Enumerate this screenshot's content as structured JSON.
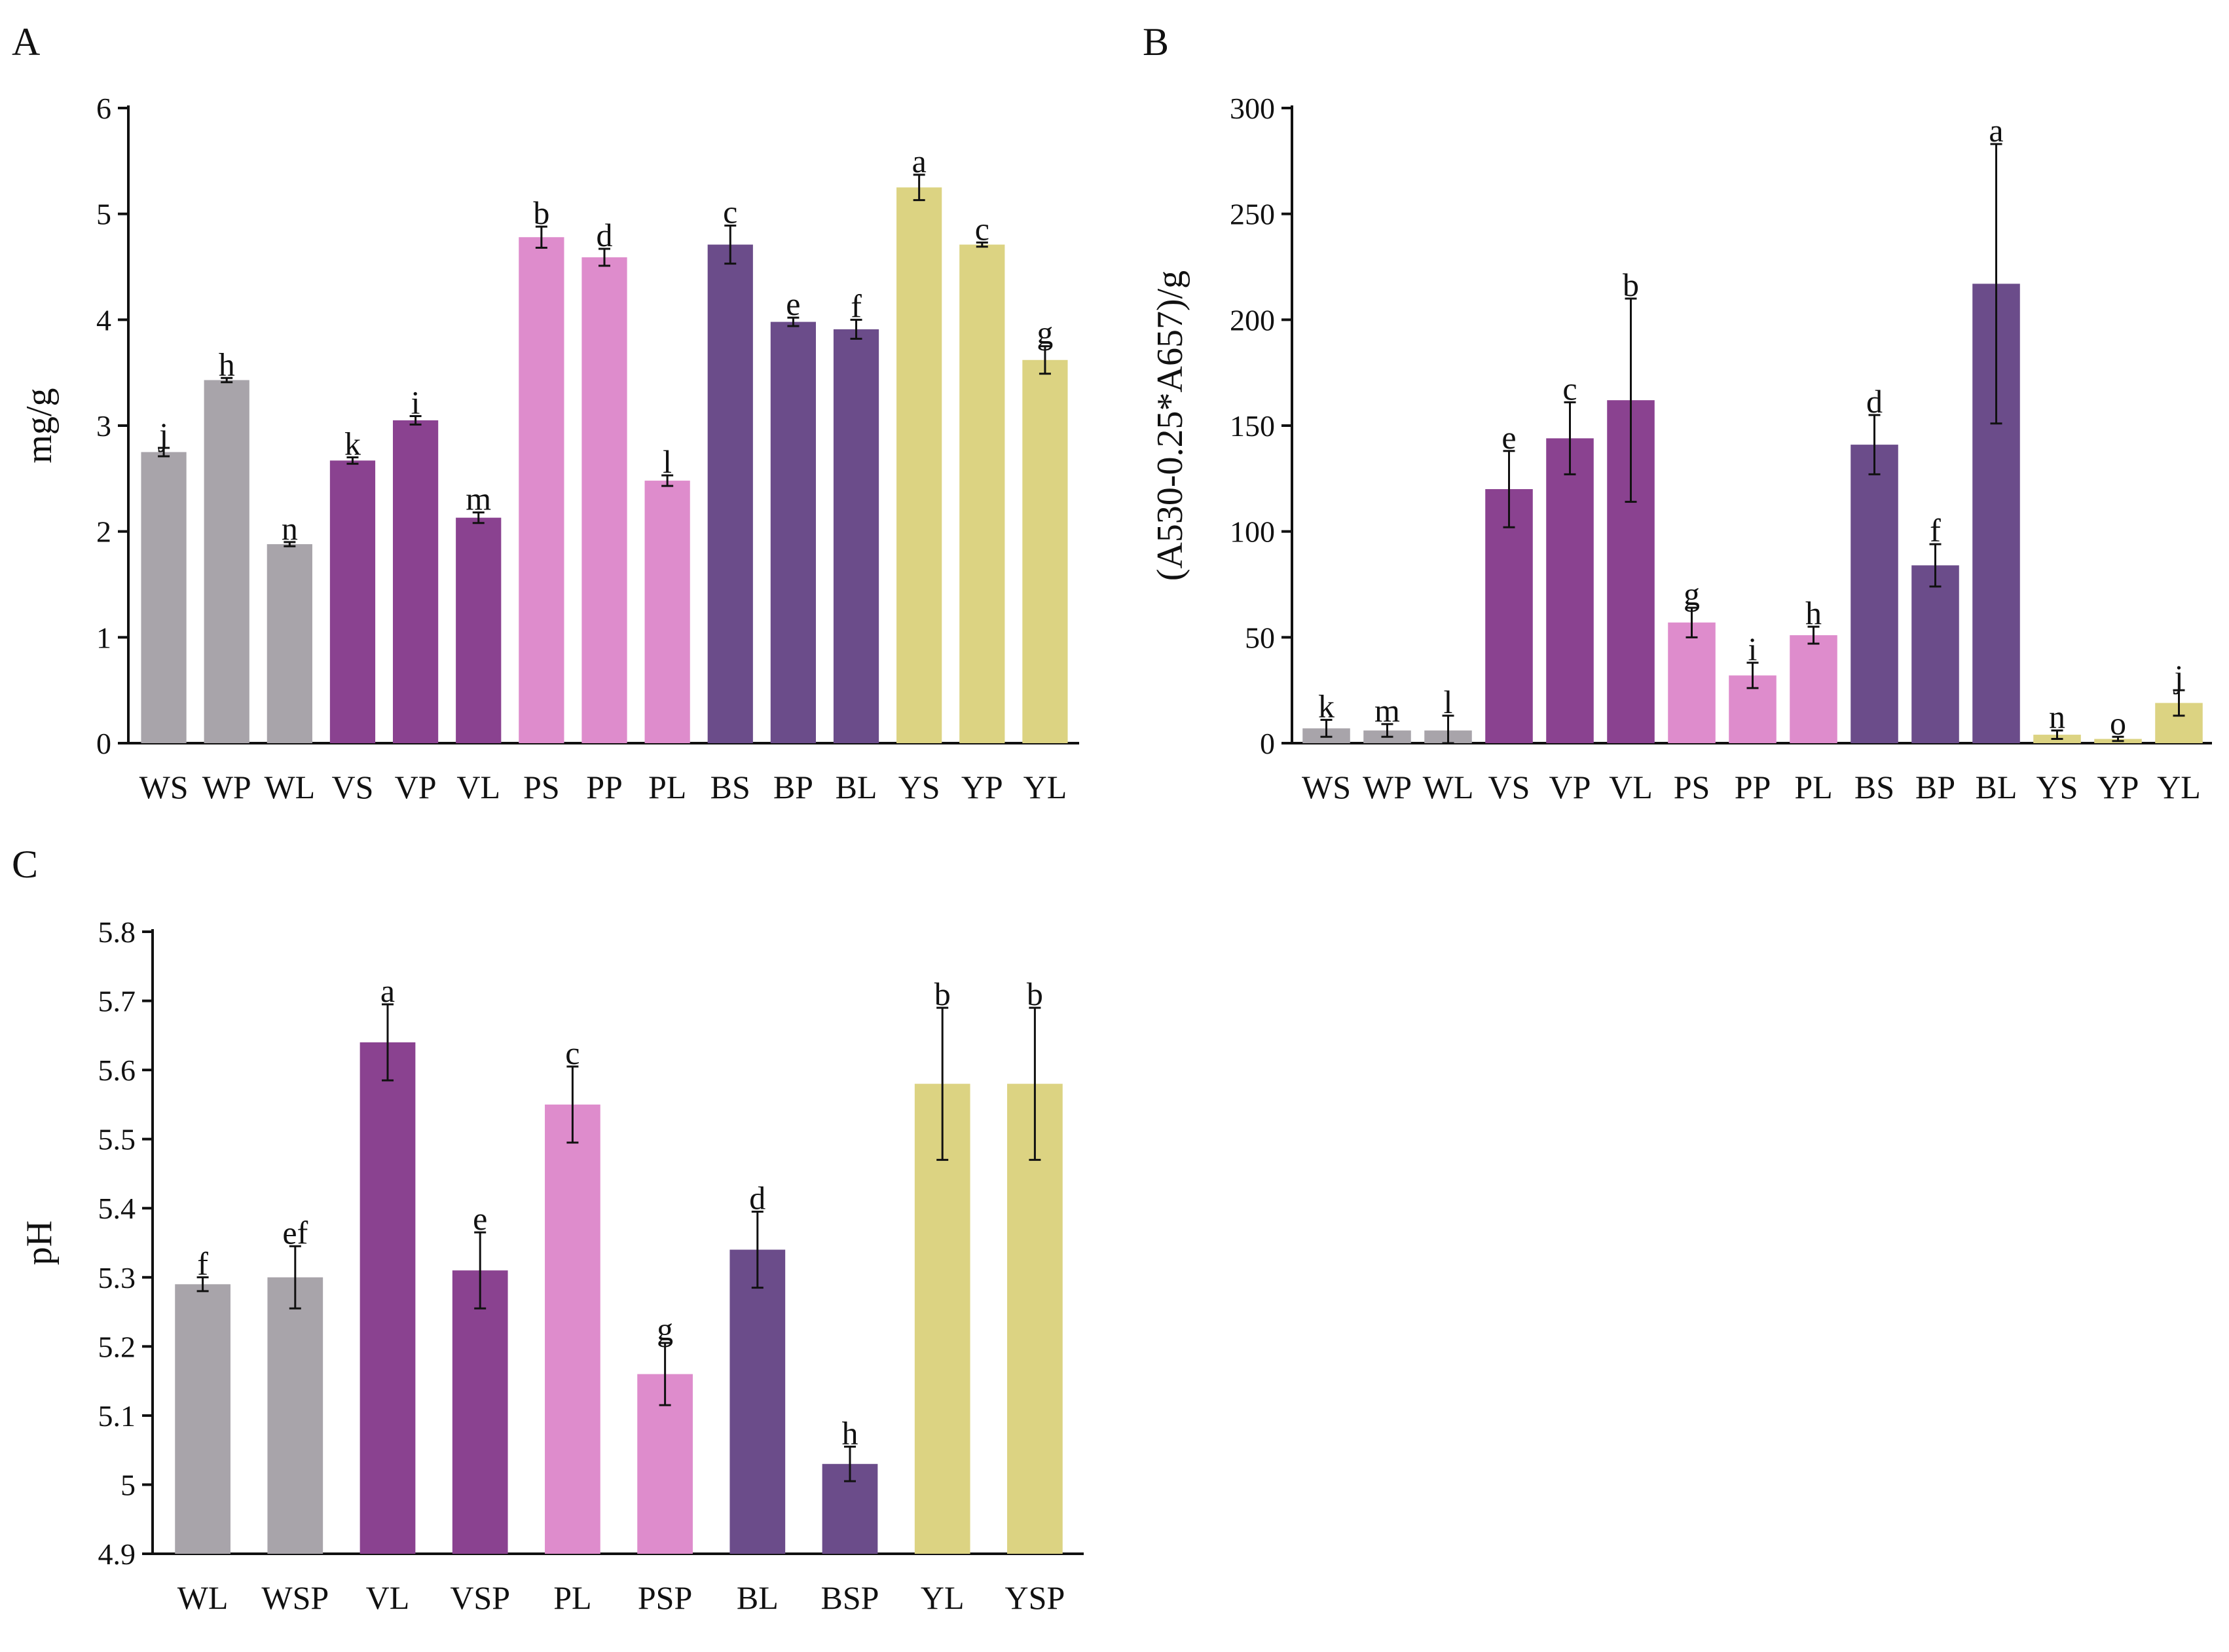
{
  "chart_data": [
    {
      "panel": "A",
      "type": "bar",
      "title": "",
      "xlabel": "",
      "ylabel": "mg/g",
      "ylim": [
        0,
        6
      ],
      "yticks": [
        0,
        1,
        2,
        3,
        4,
        5,
        6
      ],
      "categories": [
        "WS",
        "WP",
        "WL",
        "VS",
        "VP",
        "VL",
        "PS",
        "PP",
        "PL",
        "BS",
        "BP",
        "BL",
        "YS",
        "YP",
        "YL"
      ],
      "values": [
        2.75,
        3.43,
        1.88,
        2.67,
        3.05,
        2.13,
        4.78,
        4.59,
        2.48,
        4.71,
        3.98,
        3.91,
        5.25,
        4.71,
        3.62
      ],
      "errors": [
        0.04,
        0.02,
        0.02,
        0.03,
        0.04,
        0.05,
        0.1,
        0.08,
        0.05,
        0.18,
        0.04,
        0.09,
        0.12,
        0.02,
        0.13
      ],
      "letters": [
        "j",
        "h",
        "n",
        "k",
        "i",
        "m",
        "b",
        "d",
        "l",
        "c",
        "e",
        "f",
        "a",
        "c",
        "g"
      ],
      "colors": [
        "#a8a4aa",
        "#a8a4aa",
        "#a8a4aa",
        "#8a4290",
        "#8a4290",
        "#8a4290",
        "#de8ccc",
        "#de8ccc",
        "#de8ccc",
        "#6b4c8a",
        "#6b4c8a",
        "#6b4c8a",
        "#dcd382",
        "#dcd382",
        "#dcd382"
      ]
    },
    {
      "panel": "B",
      "type": "bar",
      "title": "",
      "xlabel": "",
      "ylabel": "(A530-0.25*A657)/g",
      "ylim": [
        0,
        300
      ],
      "yticks": [
        0,
        50,
        100,
        150,
        200,
        250,
        300
      ],
      "categories": [
        "WS",
        "WP",
        "WL",
        "VS",
        "VP",
        "VL",
        "PS",
        "PP",
        "PL",
        "BS",
        "BP",
        "BL",
        "YS",
        "YP",
        "YL"
      ],
      "values": [
        7,
        6,
        6,
        120,
        144,
        162,
        57,
        32,
        51,
        141,
        84,
        217,
        4,
        2,
        19
      ],
      "errors": [
        4,
        3,
        7,
        18,
        17,
        48,
        7,
        6,
        4,
        14,
        10,
        66,
        2,
        1,
        6
      ],
      "letters": [
        "k",
        "m",
        "l",
        "e",
        "c",
        "b",
        "g",
        "i",
        "h",
        "d",
        "f",
        "a",
        "n",
        "o",
        "j"
      ],
      "colors": [
        "#a8a4aa",
        "#a8a4aa",
        "#a8a4aa",
        "#8a4290",
        "#8a4290",
        "#8a4290",
        "#de8ccc",
        "#de8ccc",
        "#de8ccc",
        "#6b4c8a",
        "#6b4c8a",
        "#6b4c8a",
        "#dcd382",
        "#dcd382",
        "#dcd382"
      ]
    },
    {
      "panel": "C",
      "type": "bar",
      "title": "",
      "xlabel": "",
      "ylabel": "pH",
      "ylim": [
        4.9,
        5.8
      ],
      "yticks": [
        4.9,
        5,
        5.1,
        5.2,
        5.3,
        5.4,
        5.5,
        5.6,
        5.7,
        5.8
      ],
      "ytick_labels": [
        "4.9",
        "5",
        "5.1",
        "5.2",
        "5.3",
        "5.4",
        "5.5",
        "5.6",
        "5.7",
        "5.8"
      ],
      "categories": [
        "WL",
        "WSP",
        "VL",
        "VSP",
        "PL",
        "PSP",
        "BL",
        "BSP",
        "YL",
        "YSP"
      ],
      "values": [
        5.29,
        5.3,
        5.64,
        5.31,
        5.55,
        5.16,
        5.34,
        5.03,
        5.58,
        5.58
      ],
      "errors": [
        0.01,
        0.045,
        0.055,
        0.055,
        0.055,
        0.045,
        0.055,
        0.025,
        0.11,
        0.11
      ],
      "letters": [
        "f",
        "ef",
        "a",
        "e",
        "c",
        "g",
        "d",
        "h",
        "b",
        "b"
      ],
      "colors": [
        "#a8a4aa",
        "#a8a4aa",
        "#8a4290",
        "#8a4290",
        "#de8ccc",
        "#de8ccc",
        "#6b4c8a",
        "#6b4c8a",
        "#dcd382",
        "#dcd382"
      ]
    }
  ]
}
